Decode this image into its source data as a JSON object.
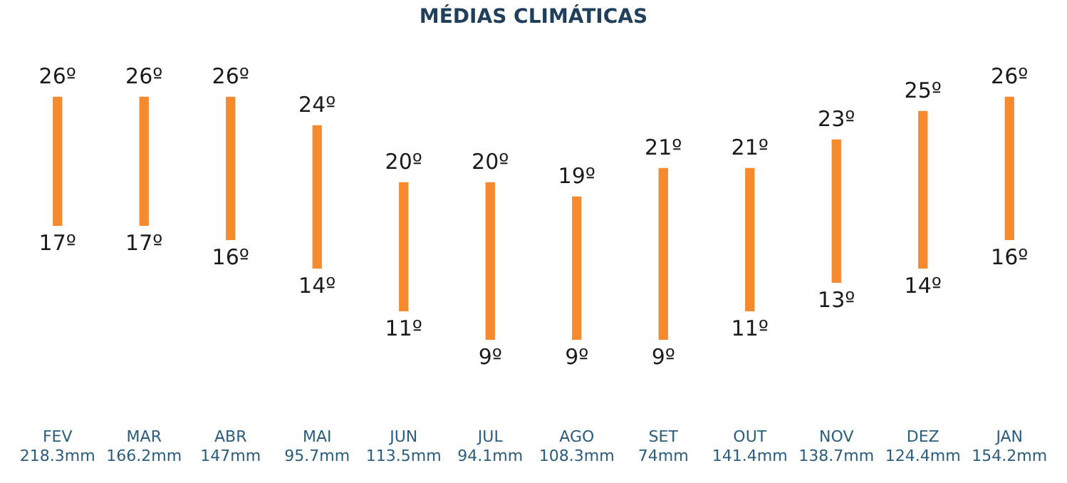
{
  "chart_data": {
    "type": "candlestick",
    "title": "MÉDIAS CLIMÁTICAS",
    "categories": [
      "FEV\n218.3mm",
      "MAR\n166.2mm",
      "ABR\n147mm",
      "MAI\n95.7mm",
      "JUN\n113.5mm",
      "JUL\n94.1mm",
      "AGO\n108.3mm",
      "SET\n74mm",
      "OUT\n141.4mm",
      "NOV\n138.7mm",
      "DEZ\n124.4mm",
      "JAN\n154.2mm"
    ],
    "ohlc": [
      [
        17,
        26,
        17,
        26
      ],
      [
        17,
        26,
        17,
        26
      ],
      [
        16,
        26,
        16,
        26
      ],
      [
        14,
        24,
        14,
        24
      ],
      [
        11,
        20,
        11,
        20
      ],
      [
        9,
        20,
        9,
        20
      ],
      [
        9,
        19,
        9,
        19
      ],
      [
        9,
        21,
        9,
        21
      ],
      [
        11,
        21,
        11,
        21
      ],
      [
        13,
        23,
        13,
        23
      ],
      [
        14,
        25,
        14,
        25
      ],
      [
        16,
        26,
        16,
        26
      ]
    ],
    "color": "#f68a2e",
    "grid": false,
    "tick_labels": "x",
    "annotations": [
      "26º",
      "17º",
      "26º",
      "17º",
      "26º",
      "16º",
      "24º",
      "14º",
      "20º",
      "11º",
      "20º",
      "9º",
      "19º",
      "9º",
      "21º",
      "9º",
      "21º",
      "11º",
      "23º",
      "13º",
      "25º",
      "14º",
      "26º",
      "16º"
    ]
  }
}
